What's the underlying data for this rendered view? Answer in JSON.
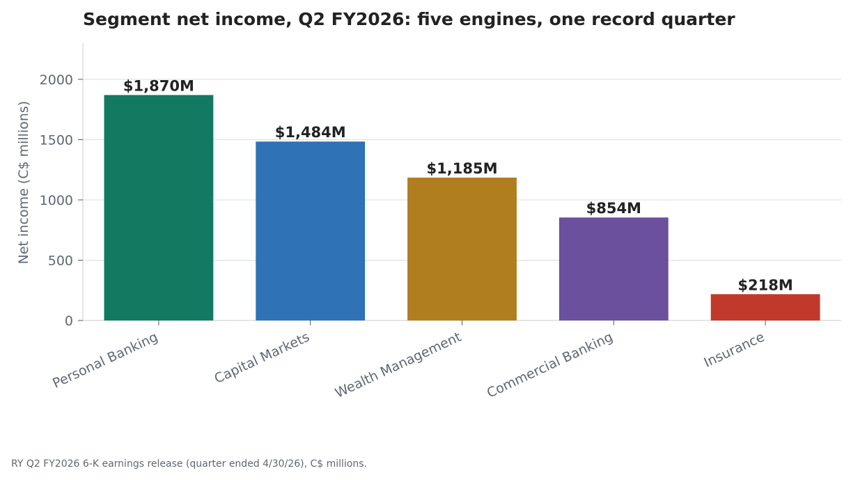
{
  "chart_data": {
    "type": "bar",
    "title": "Segment net income, Q2 FY2026: five engines, one record quarter",
    "ylabel": "Net income (C$ millions)",
    "xlabel": "",
    "categories": [
      "Personal Banking",
      "Capital Markets",
      "Wealth Management",
      "Commercial Banking",
      "Insurance"
    ],
    "values": [
      1870,
      1484,
      1185,
      854,
      218
    ],
    "value_labels": [
      "$1,870M",
      "$1,484M",
      "$1,185M",
      "$854M",
      "$218M"
    ],
    "colors": [
      "#117a60",
      "#2f72b5",
      "#b07d1f",
      "#6b509e",
      "#c0392b"
    ],
    "ylim": [
      0,
      2300
    ],
    "yticks": [
      0,
      500,
      1000,
      1500,
      2000
    ],
    "ytick_labels": [
      "0",
      "500",
      "1000",
      "1500",
      "2000"
    ],
    "grid": true,
    "legend": "none"
  },
  "source_note": "RY Q2 FY2026 6-K earnings release (quarter ended 4/30/26), C$ millions."
}
